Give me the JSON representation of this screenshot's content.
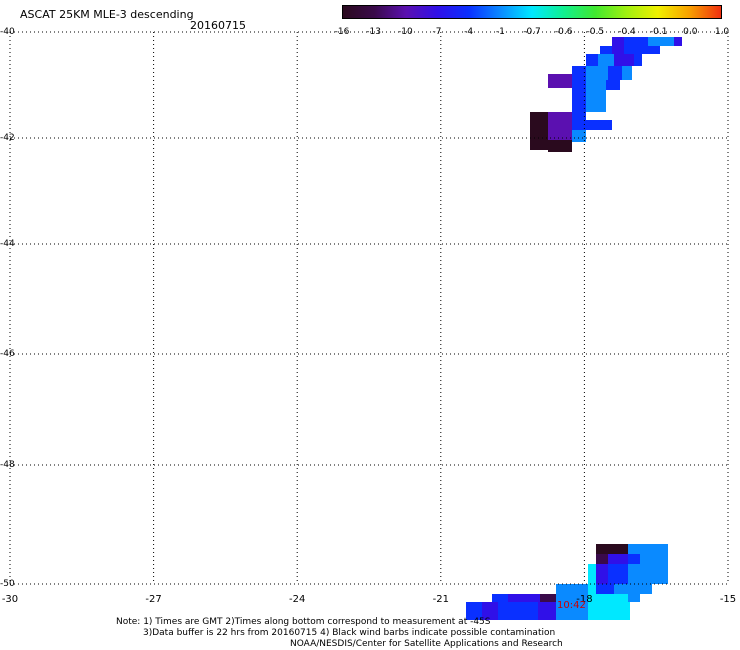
{
  "header": {
    "title": "ASCAT 25KM MLE-3 descending",
    "date": "20160715"
  },
  "colorbar": {
    "labels": [
      "-16",
      "-13",
      "-10",
      "-7",
      "-4",
      "-1",
      "-0.7",
      "-0.6",
      "-0.5",
      "-0.4",
      "-0.1",
      "0.0",
      "1.0"
    ],
    "colors": [
      "#2a0a1e",
      "#3a0a4a",
      "#5b10b0",
      "#3010e8",
      "#0a30ff",
      "#0a8aff",
      "#00e8ff",
      "#10f090",
      "#40e830",
      "#a0f010",
      "#f0f000",
      "#f8a000",
      "#f03010"
    ]
  },
  "map": {
    "lat_labels": [
      "-40",
      "-42",
      "-44",
      "-46",
      "-48",
      "-50"
    ],
    "lon_labels": [
      "-30",
      "-27",
      "-24",
      "-21",
      "-18",
      "-15"
    ],
    "time_label": "10:42"
  },
  "footer": {
    "line1": "Note: 1) Times are GMT 2)Times along bottom correspond to measurement at -45S",
    "line2": "3)Data buffer is 22 hrs from 20160715 4) Black wind barbs indicate possible contamination",
    "line3": "NOAA/NESDIS/Center for Satellite Applications and Research"
  }
}
